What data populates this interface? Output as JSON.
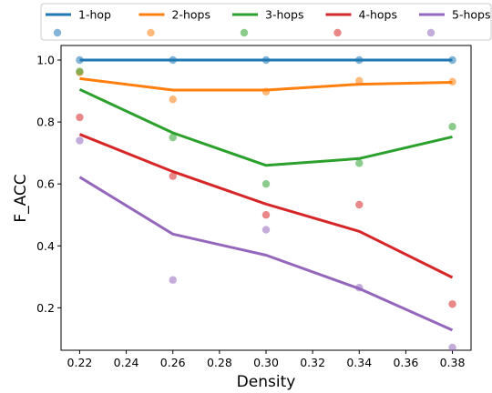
{
  "chart_data": {
    "type": "line",
    "xlabel": "Density",
    "ylabel": "F_ACC",
    "xlim": [
      0.212,
      0.388
    ],
    "ylim": [
      0.063,
      1.047
    ],
    "x_ticks": [
      0.22,
      0.24,
      0.26,
      0.28,
      0.3,
      0.32,
      0.34,
      0.36,
      0.38
    ],
    "x_tick_labels": [
      "0.22",
      "0.24",
      "0.26",
      "0.28",
      "0.30",
      "0.32",
      "0.34",
      "0.36",
      "0.38"
    ],
    "y_ticks": [
      0.2,
      0.4,
      0.6,
      0.8,
      1.0
    ],
    "y_tick_labels": [
      "0.2",
      "0.4",
      "0.6",
      "0.8",
      "1.0"
    ],
    "grid": false,
    "legend_placement": "top, above plot (two rows: lines then markers)",
    "x": [
      0.22,
      0.26,
      0.3,
      0.34,
      0.38
    ],
    "series": [
      {
        "name": "1-hop",
        "color": "#1f77b4",
        "fitted": [
          1.0,
          1.0,
          1.0,
          1.0,
          1.0
        ],
        "points": [
          1.0,
          1.0,
          1.0,
          1.0,
          1.0
        ]
      },
      {
        "name": "2-hops",
        "color": "#ff7f0e",
        "fitted": [
          0.94,
          0.903,
          0.903,
          0.922,
          0.928
        ],
        "points": [
          0.96,
          0.873,
          0.898,
          0.933,
          0.93
        ]
      },
      {
        "name": "3-hops",
        "color": "#2ca02c",
        "fitted": [
          0.905,
          0.765,
          0.66,
          0.682,
          0.752
        ],
        "points": [
          0.963,
          0.75,
          0.6,
          0.667,
          0.785
        ]
      },
      {
        "name": "4-hops",
        "color": "#d62728",
        "fitted": [
          0.76,
          0.64,
          0.535,
          0.447,
          0.298
        ],
        "points": [
          0.815,
          0.625,
          0.5,
          0.533,
          0.212
        ]
      },
      {
        "name": "5-hops",
        "color": "#9467bd",
        "fitted": [
          0.622,
          0.438,
          0.37,
          0.262,
          0.128
        ],
        "points": [
          0.74,
          0.29,
          0.452,
          0.265,
          0.072
        ]
      }
    ]
  }
}
